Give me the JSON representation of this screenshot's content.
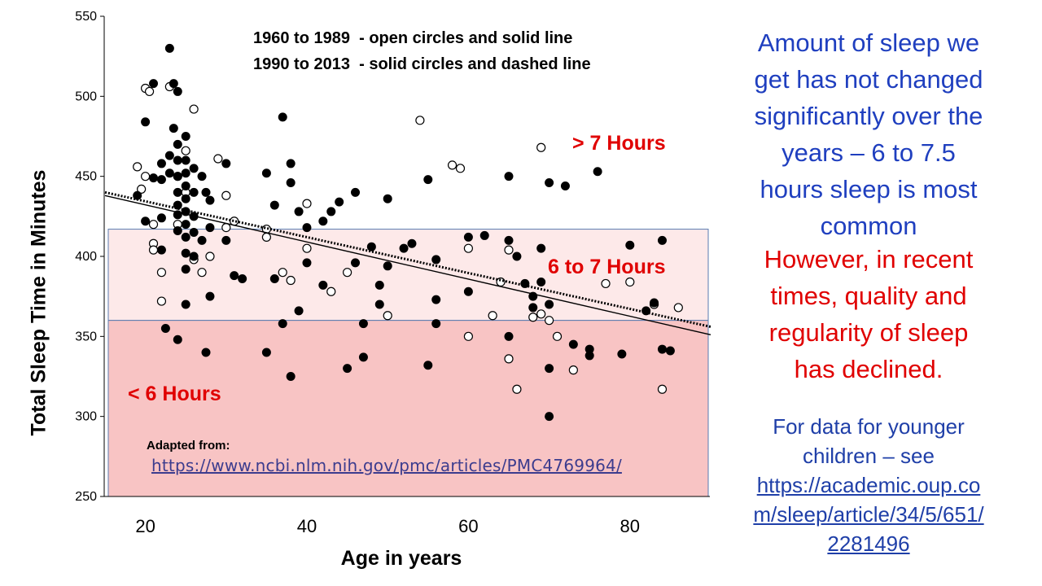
{
  "chart_data": {
    "type": "scatter",
    "ylabel": "Total Sleep Time in Minutes",
    "xlabel": "Age in years",
    "xlim": [
      15,
      90
    ],
    "ylim": [
      250,
      550
    ],
    "x_ticks": [
      20,
      40,
      60,
      80
    ],
    "y_ticks": [
      250,
      300,
      350,
      400,
      450,
      500,
      550
    ],
    "grid": false,
    "legend": [
      {
        "period": "1960 to 1989",
        "desc": "- open circles and solid line"
      },
      {
        "period": "1990 to 2013",
        "desc": "- solid circles and dashed line"
      }
    ],
    "bands": [
      {
        "label": "> 7 Hours",
        "from": 420,
        "to": 550,
        "color": "#ffffff"
      },
      {
        "label": "6 to 7 Hours",
        "from": 360,
        "to": 417,
        "color": "#fde9e9"
      },
      {
        "label": "< 6 Hours",
        "from": 250,
        "to": 360,
        "color": "#f8c4c4"
      }
    ],
    "series": [
      {
        "style": "open",
        "points": [
          [
            19,
            456
          ],
          [
            19.5,
            442
          ],
          [
            20,
            505
          ],
          [
            20.5,
            503
          ],
          [
            20,
            450
          ],
          [
            21,
            420
          ],
          [
            21,
            408
          ],
          [
            21,
            404
          ],
          [
            22,
            390
          ],
          [
            22,
            372
          ],
          [
            23,
            506
          ],
          [
            24,
            420
          ],
          [
            24,
            450
          ],
          [
            25,
            466
          ],
          [
            25,
            440
          ],
          [
            26,
            492
          ],
          [
            26,
            398
          ],
          [
            27,
            390
          ],
          [
            28,
            400
          ],
          [
            29,
            461
          ],
          [
            30,
            438
          ],
          [
            30,
            418
          ],
          [
            31,
            422
          ],
          [
            35,
            417
          ],
          [
            35,
            412
          ],
          [
            37,
            390
          ],
          [
            38,
            385
          ],
          [
            40,
            433
          ],
          [
            40,
            405
          ],
          [
            43,
            378
          ],
          [
            45,
            390
          ],
          [
            50,
            363
          ],
          [
            54,
            485
          ],
          [
            58,
            457
          ],
          [
            59,
            455
          ],
          [
            60,
            405
          ],
          [
            60,
            350
          ],
          [
            63,
            363
          ],
          [
            64,
            384
          ],
          [
            65,
            336
          ],
          [
            65,
            404
          ],
          [
            66,
            317
          ],
          [
            68,
            362
          ],
          [
            69,
            468
          ],
          [
            69,
            364
          ],
          [
            70,
            360
          ],
          [
            71,
            350
          ],
          [
            73,
            329
          ],
          [
            77,
            383
          ],
          [
            80,
            384
          ],
          [
            83,
            370
          ],
          [
            84,
            317
          ],
          [
            86,
            368
          ]
        ],
        "trend": [
          [
            15,
            438
          ],
          [
            90,
            351
          ]
        ]
      },
      {
        "style": "solid",
        "points": [
          [
            19,
            438
          ],
          [
            20,
            484
          ],
          [
            20,
            422
          ],
          [
            21,
            508
          ],
          [
            21,
            449
          ],
          [
            22,
            458
          ],
          [
            22,
            448
          ],
          [
            22,
            424
          ],
          [
            22,
            404
          ],
          [
            22.5,
            355
          ],
          [
            23,
            530
          ],
          [
            23,
            463
          ],
          [
            23,
            452
          ],
          [
            23.5,
            508
          ],
          [
            23.5,
            480
          ],
          [
            24,
            503
          ],
          [
            24,
            470
          ],
          [
            24,
            460
          ],
          [
            24,
            450
          ],
          [
            24,
            440
          ],
          [
            24,
            432
          ],
          [
            24,
            426
          ],
          [
            24,
            416
          ],
          [
            24,
            348
          ],
          [
            25,
            475
          ],
          [
            25,
            460
          ],
          [
            25,
            452
          ],
          [
            25,
            444
          ],
          [
            25,
            436
          ],
          [
            25,
            428
          ],
          [
            25,
            420
          ],
          [
            25,
            412
          ],
          [
            25,
            402
          ],
          [
            25,
            392
          ],
          [
            25,
            370
          ],
          [
            26,
            455
          ],
          [
            26,
            440
          ],
          [
            26,
            425
          ],
          [
            26,
            415
          ],
          [
            26,
            400
          ],
          [
            27,
            450
          ],
          [
            27,
            410
          ],
          [
            27.5,
            440
          ],
          [
            28,
            435
          ],
          [
            28,
            418
          ],
          [
            28,
            375
          ],
          [
            27.5,
            340
          ],
          [
            30,
            458
          ],
          [
            30,
            410
          ],
          [
            31,
            388
          ],
          [
            32,
            386
          ],
          [
            35,
            452
          ],
          [
            35,
            340
          ],
          [
            36,
            432
          ],
          [
            36,
            386
          ],
          [
            37,
            487
          ],
          [
            37,
            358
          ],
          [
            38,
            458
          ],
          [
            38,
            446
          ],
          [
            39,
            428
          ],
          [
            39,
            366
          ],
          [
            40,
            418
          ],
          [
            40,
            396
          ],
          [
            38,
            325
          ],
          [
            42,
            382
          ],
          [
            42,
            422
          ],
          [
            43,
            428
          ],
          [
            44,
            434
          ],
          [
            45,
            330
          ],
          [
            46,
            440
          ],
          [
            46,
            396
          ],
          [
            47,
            358
          ],
          [
            47,
            337
          ],
          [
            48,
            406
          ],
          [
            49,
            382
          ],
          [
            49,
            370
          ],
          [
            50,
            394
          ],
          [
            50,
            436
          ],
          [
            52,
            405
          ],
          [
            53,
            408
          ],
          [
            55,
            448
          ],
          [
            55,
            332
          ],
          [
            56,
            398
          ],
          [
            56,
            373
          ],
          [
            56,
            358
          ],
          [
            60,
            412
          ],
          [
            60,
            378
          ],
          [
            62,
            413
          ],
          [
            65,
            410
          ],
          [
            65,
            450
          ],
          [
            65,
            350
          ],
          [
            66,
            400
          ],
          [
            67,
            383
          ],
          [
            68,
            375
          ],
          [
            68,
            368
          ],
          [
            69,
            405
          ],
          [
            69,
            384
          ],
          [
            70,
            446
          ],
          [
            70,
            370
          ],
          [
            70,
            330
          ],
          [
            70,
            300
          ],
          [
            72,
            444
          ],
          [
            73,
            345
          ],
          [
            75,
            342
          ],
          [
            75,
            338
          ],
          [
            76,
            453
          ],
          [
            79,
            339
          ],
          [
            80,
            407
          ],
          [
            82,
            366
          ],
          [
            83,
            371
          ],
          [
            84,
            410
          ],
          [
            84,
            342
          ],
          [
            85,
            341
          ]
        ],
        "trend": [
          [
            15,
            440
          ],
          [
            90,
            356
          ]
        ]
      }
    ]
  },
  "source": {
    "label": "Adapted from:",
    "url": "https://www.ncbi.nlm.nih.gov/pmc/articles/PMC4769964/"
  },
  "side_text": {
    "blue_lines": [
      "Amount of sleep we",
      "get has not changed",
      "significantly over the",
      "years – 6 to 7.5",
      "hours sleep is most",
      "common"
    ],
    "red_lines": [
      "However, in recent",
      "times, quality and",
      "regularity of sleep",
      "has declined."
    ],
    "bottom_line1": "For data for younger",
    "bottom_line2": "children – see",
    "bottom_url_parts": [
      "https://academic.oup.co",
      "m/sleep/article/34/5/651/",
      "2281496"
    ]
  },
  "colors": {
    "blue_text": "#1f3fbf",
    "red_text": "#e00000",
    "band_light": "#fde9e9",
    "band_dark": "#f8c4c4"
  }
}
